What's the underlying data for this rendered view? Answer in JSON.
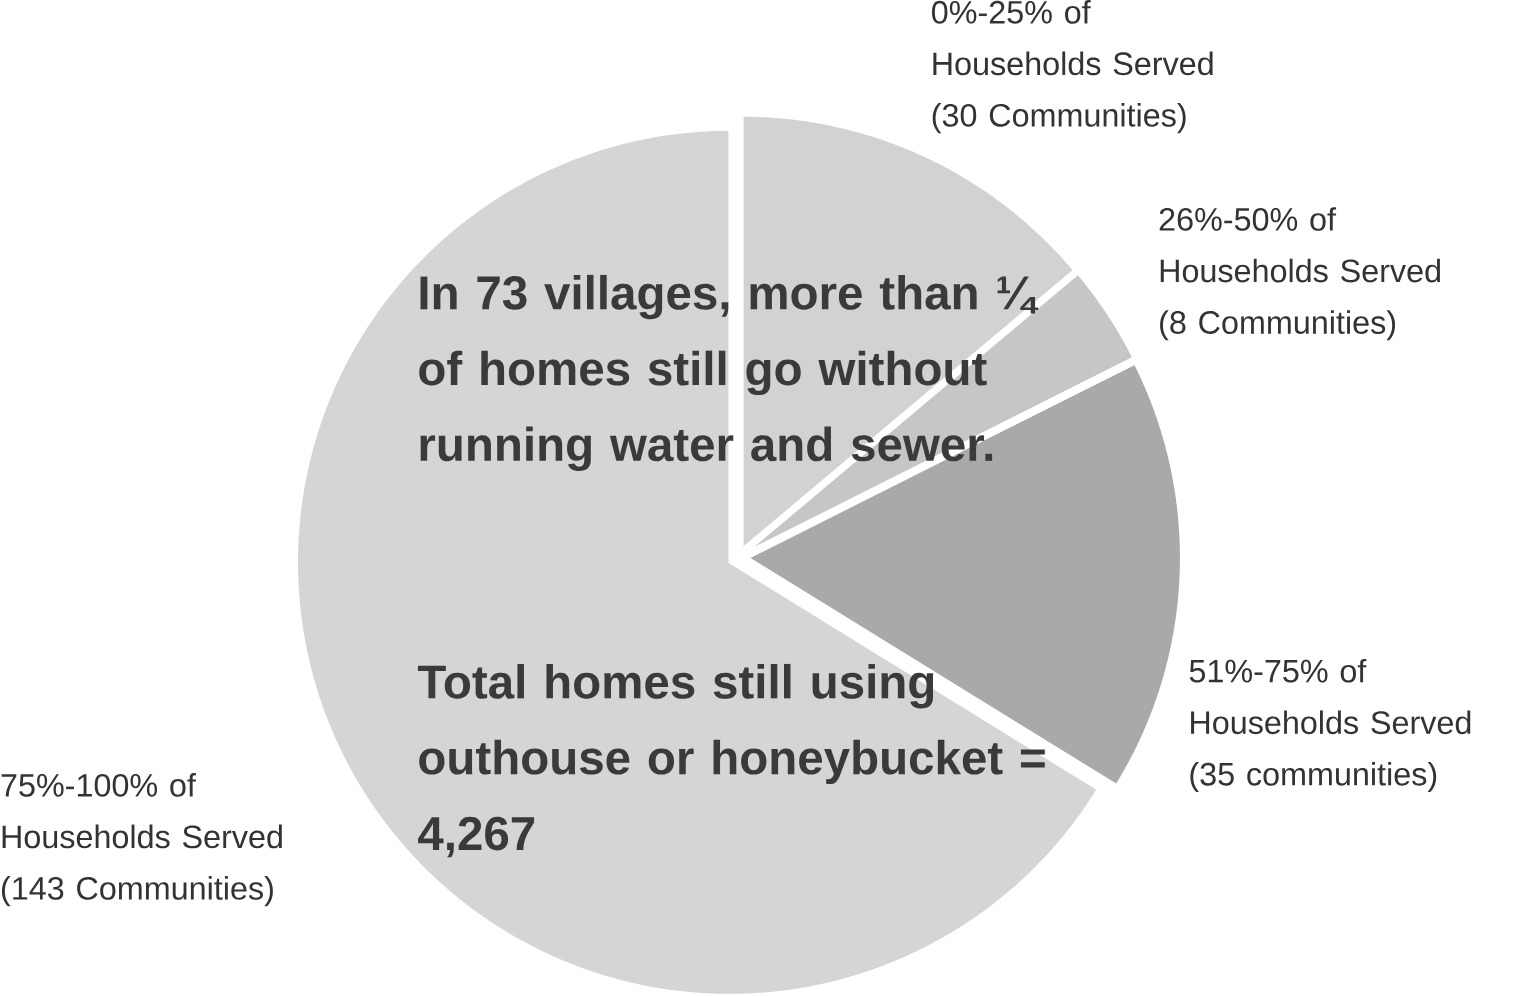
{
  "chart_data": {
    "type": "pie",
    "categories": [
      "0%-25% of Households Served (30 Communities)",
      "26%-50% of Households Served (8 Communities)",
      "51%-75% of Households Served (35 communities)",
      "75%-100% of Households Served (143 Communities)"
    ],
    "values": [
      30,
      8,
      35,
      143
    ],
    "colors": [
      "#d2d2d2",
      "#c6c6c6",
      "#a9a9a9",
      "#d5d5d5"
    ],
    "annotations": [
      "In 73 villages, more than ¼ of homes still go without running water and sewer.",
      "Total homes still using outhouse or honeybucket = 4,267"
    ]
  }
}
